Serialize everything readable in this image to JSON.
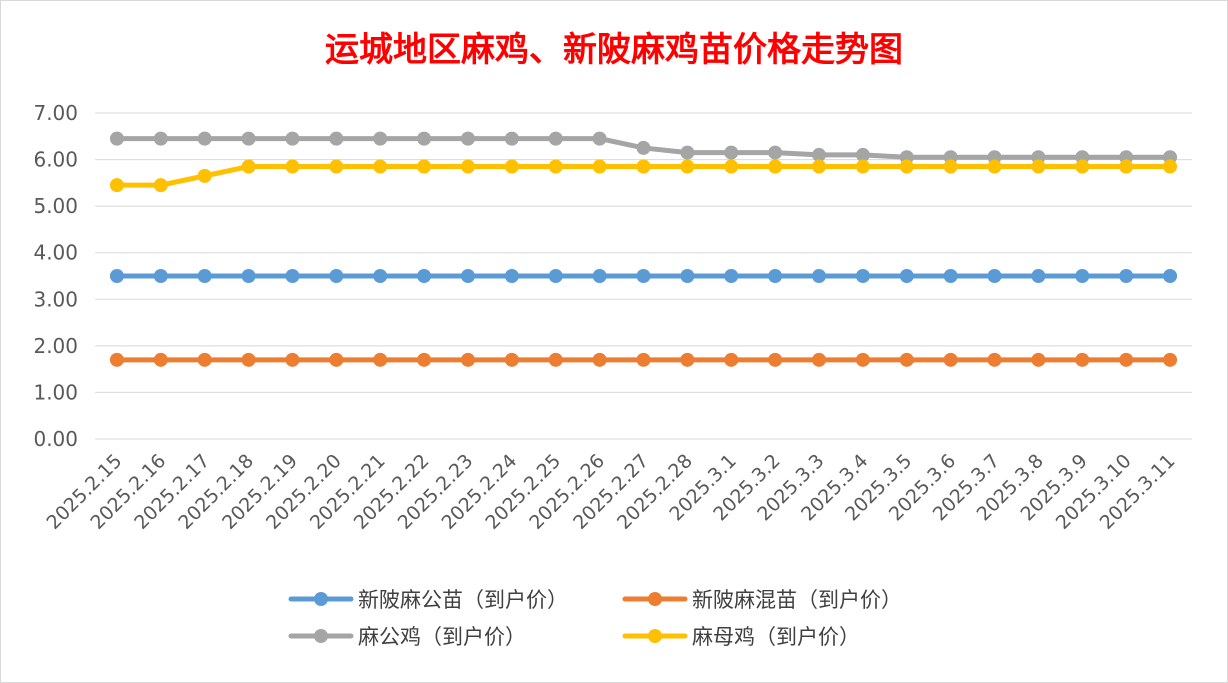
{
  "chart_data": {
    "type": "line",
    "title": "运城地区麻鸡、新陂麻鸡苗价格走势图",
    "xlabel": "",
    "ylabel": "",
    "ylim": [
      0,
      7
    ],
    "ytick_step": 1,
    "y_tick_labels": [
      "0.00",
      "1.00",
      "2.00",
      "3.00",
      "4.00",
      "5.00",
      "6.00",
      "7.00"
    ],
    "grid": true,
    "legend_position": "bottom",
    "categories": [
      "2025.2.15",
      "2025.2.16",
      "2025.2.17",
      "2025.2.18",
      "2025.2.19",
      "2025.2.20",
      "2025.2.21",
      "2025.2.22",
      "2025.2.23",
      "2025.2.24",
      "2025.2.25",
      "2025.2.26",
      "2025.2.27",
      "2025.2.28",
      "2025.3.1",
      "2025.3.2",
      "2025.3.3",
      "2025.3.4",
      "2025.3.5",
      "2025.3.6",
      "2025.3.7",
      "2025.3.8",
      "2025.3.9",
      "2025.3.10",
      "2025.3.11"
    ],
    "series": [
      {
        "name": "新陂麻公苗（到户价）",
        "color": "#5b9bd5",
        "values": [
          3.5,
          3.5,
          3.5,
          3.5,
          3.5,
          3.5,
          3.5,
          3.5,
          3.5,
          3.5,
          3.5,
          3.5,
          3.5,
          3.5,
          3.5,
          3.5,
          3.5,
          3.5,
          3.5,
          3.5,
          3.5,
          3.5,
          3.5,
          3.5,
          3.5
        ]
      },
      {
        "name": "新陂麻混苗（到户价）",
        "color": "#ed7d31",
        "values": [
          1.7,
          1.7,
          1.7,
          1.7,
          1.7,
          1.7,
          1.7,
          1.7,
          1.7,
          1.7,
          1.7,
          1.7,
          1.7,
          1.7,
          1.7,
          1.7,
          1.7,
          1.7,
          1.7,
          1.7,
          1.7,
          1.7,
          1.7,
          1.7,
          1.7
        ]
      },
      {
        "name": "麻公鸡（到户价）",
        "color": "#a5a5a5",
        "values": [
          6.45,
          6.45,
          6.45,
          6.45,
          6.45,
          6.45,
          6.45,
          6.45,
          6.45,
          6.45,
          6.45,
          6.45,
          6.25,
          6.15,
          6.15,
          6.15,
          6.1,
          6.1,
          6.05,
          6.05,
          6.05,
          6.05,
          6.05,
          6.05,
          6.05
        ]
      },
      {
        "name": "麻母鸡（到户价）",
        "color": "#ffc000",
        "values": [
          5.45,
          5.45,
          5.65,
          5.85,
          5.85,
          5.85,
          5.85,
          5.85,
          5.85,
          5.85,
          5.85,
          5.85,
          5.85,
          5.85,
          5.85,
          5.85,
          5.85,
          5.85,
          5.85,
          5.85,
          5.85,
          5.85,
          5.85,
          5.85,
          5.85
        ]
      }
    ]
  }
}
